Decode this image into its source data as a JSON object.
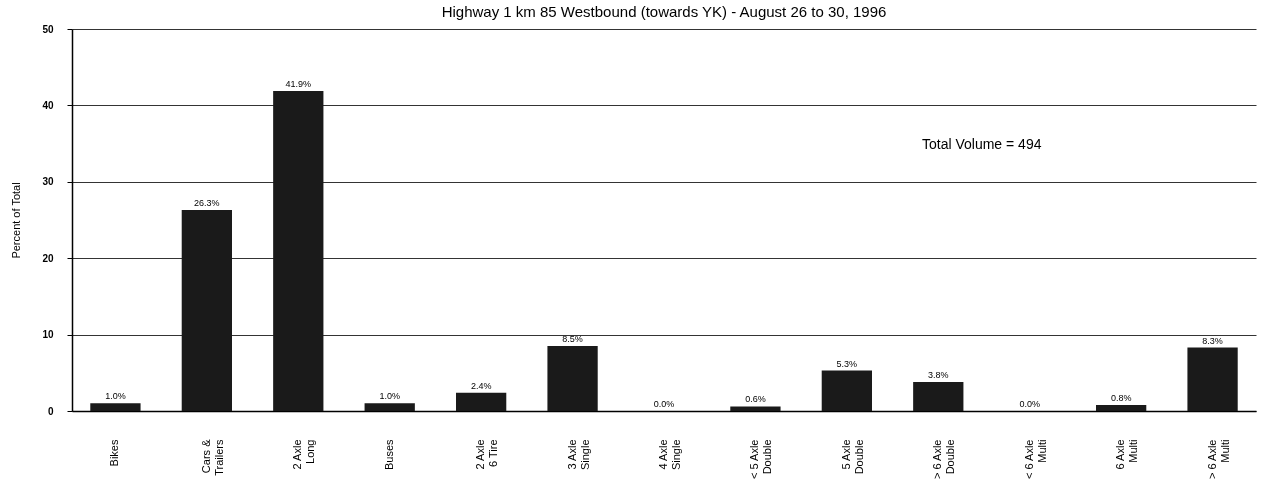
{
  "chart_data": {
    "type": "bar",
    "title": "Highway 1 km 85 Westbound (towards YK) - August 26 to 30, 1996",
    "ylabel": "Percent of Total",
    "categories": [
      "Bikes",
      "Cars &\nTrailers",
      "2 Axle\nLong",
      "Buses",
      "2 Axle\n6 Tire",
      "3 Axle\nSingle",
      "4 Axle\nSingle",
      "< 5 Axle\nDouble",
      "5 Axle\nDouble",
      "> 6 Axle\nDouble",
      "< 6 Axle\nMulti",
      "6 Axle\nMulti",
      "> 6 Axle\nMulti"
    ],
    "values": [
      1.0,
      26.3,
      41.9,
      1.0,
      2.4,
      8.5,
      0.0,
      0.6,
      5.3,
      3.8,
      0.0,
      0.8,
      8.3
    ],
    "value_labels": [
      "1.0%",
      "26.3%",
      "41.9%",
      "1.0%",
      "2.4%",
      "8.5%",
      "0.0%",
      "0.6%",
      "5.3%",
      "3.8%",
      "0.0%",
      "0.8%",
      "8.3%"
    ],
    "color": "#1a1a1a",
    "ylim": [
      0,
      50
    ],
    "yticks": [
      0,
      10,
      20,
      30,
      40,
      50
    ],
    "grid": "y",
    "annotations": [
      "Total Volume = 494"
    ]
  }
}
